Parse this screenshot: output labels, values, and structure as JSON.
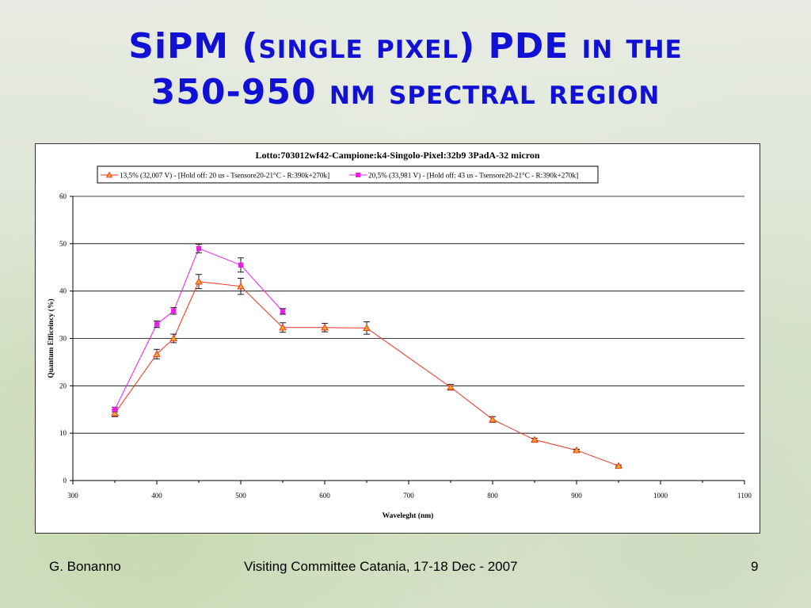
{
  "slide": {
    "title": {
      "part1": "SiPM (",
      "part2": "single pixel",
      "part3": ") PDE ",
      "part4": "in the",
      "part5": "350-950 ",
      "part6": "nm spectral region"
    },
    "footer": {
      "author": "G. Bonanno",
      "event": "Visiting Committee Catania, 17-18 Dec - 2007",
      "page": "9"
    }
  },
  "colors": {
    "title": "#1111d6",
    "series1": "#e8301e",
    "series1_marker": "#f5a623",
    "series2": "#e91ee8"
  },
  "chart_data": {
    "type": "line",
    "title": "Lotto:703012wf42-Campione:k4-Singolo-Pixel:32b9 3PadA-32 micron",
    "xlabel": "Waveleght (nm)",
    "ylabel": "Quantum Efficeincy (%)",
    "xlim": [
      300,
      1100
    ],
    "ylim": [
      0,
      60
    ],
    "xticks": [
      300,
      400,
      500,
      600,
      700,
      800,
      900,
      1000,
      1100
    ],
    "yticks": [
      0,
      10,
      20,
      30,
      40,
      50,
      60
    ],
    "grid": "horizontal",
    "legend_position": "top",
    "series": [
      {
        "name": "13,5% (32,007 V) - [Hold off: 20 us - Tsensore20-21°C - R:390k+270k]",
        "marker": "triangle",
        "x": [
          350,
          400,
          420,
          450,
          500,
          550,
          600,
          650,
          750,
          800,
          850,
          900,
          950
        ],
        "y": [
          14.2,
          26.7,
          30.0,
          42.0,
          41.0,
          32.3,
          32.3,
          32.2,
          19.7,
          12.9,
          8.6,
          6.4,
          3.1
        ],
        "err": [
          0.7,
          1.0,
          0.9,
          1.5,
          1.7,
          1.0,
          0.9,
          1.3,
          0.6,
          0.6,
          0.3,
          0.2,
          0.2
        ]
      },
      {
        "name": "20,5% (33,981 V) - [Hold off: 43 us - Tsensore20-21°C - R:390k+270k]",
        "marker": "square",
        "x": [
          350,
          400,
          420,
          450,
          500,
          550
        ],
        "y": [
          15.0,
          33.0,
          35.8,
          49.0,
          45.5,
          35.7
        ],
        "err": [
          0.5,
          0.7,
          0.7,
          0.9,
          1.5,
          0.6
        ]
      }
    ]
  }
}
